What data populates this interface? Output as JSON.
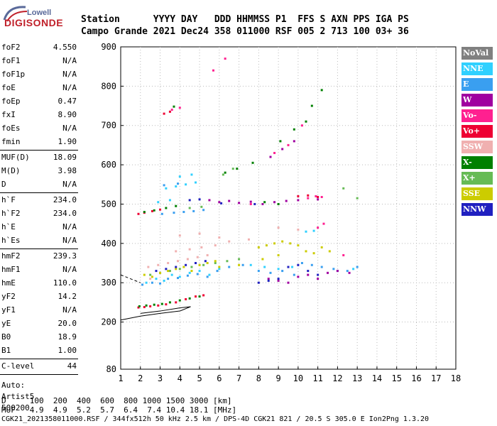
{
  "logo": {
    "top": "Lowell",
    "main": "DIGISONDE"
  },
  "header": {
    "line1": "Station      YYYY DAY   DDD HHMMSS P1  FFS S AXN PPS IGA PS",
    "line2": "Campo Grande 2021 Dec24 358 011000 RSF 005 2 713 100 03+ 36"
  },
  "params_a": [
    {
      "name": "foF2",
      "value": "4.550"
    },
    {
      "name": "foF1",
      "value": "N/A"
    },
    {
      "name": "foF1p",
      "value": "N/A"
    },
    {
      "name": "foE",
      "value": "N/A"
    },
    {
      "name": "foEp",
      "value": "0.47"
    },
    {
      "name": "fxI",
      "value": "8.90"
    },
    {
      "name": "foEs",
      "value": "N/A"
    },
    {
      "name": "fmin",
      "value": "1.90"
    }
  ],
  "params_b": [
    {
      "name": "MUF(D)",
      "value": "18.09"
    },
    {
      "name": "M(D)",
      "value": "3.98"
    },
    {
      "name": "D",
      "value": "N/A"
    }
  ],
  "params_c": [
    {
      "name": "h`F",
      "value": "234.0"
    },
    {
      "name": "h`F2",
      "value": "234.0"
    },
    {
      "name": "h`E",
      "value": "N/A"
    },
    {
      "name": "h`Es",
      "value": "N/A"
    }
  ],
  "params_d": [
    {
      "name": "hmF2",
      "value": "239.3"
    },
    {
      "name": "hmF1",
      "value": "N/A"
    },
    {
      "name": "hmE",
      "value": "110.0"
    },
    {
      "name": "yF2",
      "value": "14.2"
    },
    {
      "name": "yF1",
      "value": "N/A"
    },
    {
      "name": "yE",
      "value": "20.0"
    },
    {
      "name": "B0",
      "value": "18.9"
    },
    {
      "name": "B1",
      "value": "1.00"
    }
  ],
  "params_e": [
    {
      "name": "C-level",
      "value": "44"
    }
  ],
  "autoscale": {
    "line1": "Auto:",
    "line2": "Artist5",
    "line3": "500200"
  },
  "legend": [
    {
      "label": "NoVal",
      "color": "#808080"
    },
    {
      "label": "NNE",
      "color": "#30d0ff"
    },
    {
      "label": "E",
      "color": "#3a9ff0"
    },
    {
      "label": "W",
      "color": "#a000a0"
    },
    {
      "label": "Vo-",
      "color": "#ff2090"
    },
    {
      "label": "Vo+",
      "color": "#ee0033"
    },
    {
      "label": "SSW",
      "color": "#f0b0b0"
    },
    {
      "label": "X-",
      "color": "#008000"
    },
    {
      "label": "X+",
      "color": "#66bb55"
    },
    {
      "label": "SSE",
      "color": "#cccc00"
    },
    {
      "label": "NNW",
      "color": "#2020c0"
    }
  ],
  "footer": {
    "line1": "D     100  200  400  600  800 1000 1500 3000 [km]",
    "line2": "MUF   4.9  4.9  5.2  5.7  6.4  7.4 10.4 18.1 [MHz]",
    "line3": "CGK21_2021358011000.RSF / 344fx512h 50 kHz 2.5 km / DPS-4D CGK21 821 / 20.5 S 305.0 E Ion2Png 1.3.20"
  },
  "chart_data": {
    "type": "scatter",
    "xlim": [
      1,
      18
    ],
    "ylim": [
      80,
      900
    ],
    "x_ticks": [
      "1",
      "2",
      "3",
      "4",
      "5",
      "6",
      "7",
      "8",
      "9",
      "10",
      "11",
      "12",
      "13",
      "14",
      "15",
      "16",
      "17",
      "18"
    ],
    "y_ticks": [
      "80",
      "200",
      "300",
      "400",
      "500",
      "600",
      "700",
      "800",
      "900"
    ],
    "series": [
      {
        "name": "NNE",
        "color": "#30d0ff",
        "points": [
          [
            2.3,
            300
          ],
          [
            2.8,
            310
          ],
          [
            3.2,
            305
          ],
          [
            3.6,
            320
          ],
          [
            4.0,
            315
          ],
          [
            4.5,
            325
          ],
          [
            5.0,
            330
          ],
          [
            5.5,
            320
          ],
          [
            6.0,
            335
          ],
          [
            3.3,
            540
          ],
          [
            3.8,
            545
          ],
          [
            4.3,
            550
          ],
          [
            4.8,
            555
          ],
          [
            2.9,
            505
          ],
          [
            3.5,
            510
          ],
          [
            7.6,
            345
          ],
          [
            8.3,
            340
          ],
          [
            9.0,
            335
          ],
          [
            9.7,
            340
          ],
          [
            10.4,
            430
          ],
          [
            10.8,
            432
          ],
          [
            12.0,
            330
          ],
          [
            12.8,
            335
          ],
          [
            4.0,
            570
          ],
          [
            4.6,
            575
          ]
        ]
      },
      {
        "name": "E",
        "color": "#3a9ff0",
        "points": [
          [
            2.1,
            295
          ],
          [
            2.6,
            300
          ],
          [
            3.0,
            298
          ],
          [
            3.4,
            310
          ],
          [
            3.9,
            312
          ],
          [
            4.4,
            318
          ],
          [
            4.9,
            322
          ],
          [
            5.4,
            315
          ],
          [
            5.9,
            330
          ],
          [
            3.1,
            475
          ],
          [
            3.7,
            478
          ],
          [
            4.2,
            480
          ],
          [
            4.7,
            482
          ],
          [
            5.2,
            485
          ],
          [
            3.2,
            548
          ],
          [
            3.9,
            552
          ],
          [
            8.0,
            330
          ],
          [
            8.6,
            325
          ],
          [
            9.2,
            330
          ],
          [
            9.8,
            320
          ],
          [
            10.2,
            350
          ],
          [
            10.7,
            345
          ],
          [
            11.2,
            340
          ],
          [
            11.8,
            335
          ],
          [
            12.5,
            330
          ],
          [
            13.0,
            340
          ],
          [
            6.5,
            340
          ],
          [
            7.2,
            345
          ]
        ]
      },
      {
        "name": "W",
        "color": "#a000a0",
        "points": [
          [
            6.0,
            505
          ],
          [
            6.5,
            508
          ],
          [
            7.0,
            503
          ],
          [
            7.6,
            506
          ],
          [
            8.2,
            500
          ],
          [
            8.8,
            505
          ],
          [
            9.4,
            508
          ],
          [
            10.0,
            510
          ],
          [
            8.5,
            310
          ],
          [
            9.0,
            305
          ],
          [
            9.5,
            300
          ],
          [
            10.0,
            315
          ],
          [
            10.5,
            320
          ],
          [
            11.0,
            310
          ],
          [
            11.5,
            325
          ],
          [
            12.0,
            330
          ],
          [
            12.6,
            325
          ],
          [
            8.6,
            620
          ],
          [
            9.2,
            640
          ],
          [
            9.8,
            660
          ],
          [
            5.5,
            510
          ],
          [
            11.0,
            512
          ]
        ]
      },
      {
        "name": "Vo-",
        "color": "#ff2090",
        "points": [
          [
            5.7,
            840
          ],
          [
            6.3,
            870
          ],
          [
            3.6,
            740
          ],
          [
            4.0,
            745
          ],
          [
            8.8,
            630
          ],
          [
            9.5,
            650
          ],
          [
            10.2,
            700
          ],
          [
            10.9,
            520
          ],
          [
            11.2,
            518
          ],
          [
            10.5,
            515
          ],
          [
            11.0,
            440
          ],
          [
            11.3,
            450
          ],
          [
            7.6,
            500
          ],
          [
            12.3,
            370
          ]
        ]
      },
      {
        "name": "Vo+",
        "color": "#ee0033",
        "points": [
          [
            1.9,
            475
          ],
          [
            2.2,
            478
          ],
          [
            2.6,
            482
          ],
          [
            3.0,
            486
          ],
          [
            1.9,
            237
          ],
          [
            2.2,
            238
          ],
          [
            2.5,
            240
          ],
          [
            2.9,
            242
          ],
          [
            3.3,
            245
          ],
          [
            3.8,
            250
          ],
          [
            4.3,
            258
          ],
          [
            4.8,
            265
          ],
          [
            5.2,
            268
          ],
          [
            3.2,
            730
          ],
          [
            3.5,
            735
          ],
          [
            10.0,
            520
          ],
          [
            10.5,
            522
          ],
          [
            11.0,
            518
          ]
        ]
      },
      {
        "name": "SSW",
        "color": "#f0b0b0",
        "points": [
          [
            2.4,
            340
          ],
          [
            2.9,
            345
          ],
          [
            3.4,
            350
          ],
          [
            3.9,
            355
          ],
          [
            4.4,
            360
          ],
          [
            4.9,
            365
          ],
          [
            5.4,
            370
          ],
          [
            3.8,
            380
          ],
          [
            4.5,
            385
          ],
          [
            5.1,
            390
          ],
          [
            5.8,
            395
          ],
          [
            6.5,
            405
          ],
          [
            7.5,
            410
          ],
          [
            9.0,
            440
          ],
          [
            10.0,
            435
          ],
          [
            2.5,
            310
          ],
          [
            4.0,
            420
          ],
          [
            5.0,
            425
          ],
          [
            6.0,
            415
          ]
        ]
      },
      {
        "name": "X-",
        "color": "#008000",
        "points": [
          [
            1.95,
            240
          ],
          [
            2.3,
            242
          ],
          [
            2.7,
            244
          ],
          [
            3.1,
            246
          ],
          [
            3.5,
            250
          ],
          [
            4.0,
            255
          ],
          [
            4.5,
            260
          ],
          [
            5.0,
            265
          ],
          [
            2.2,
            480
          ],
          [
            2.7,
            484
          ],
          [
            3.3,
            490
          ],
          [
            3.8,
            495
          ],
          [
            9.1,
            660
          ],
          [
            9.8,
            690
          ],
          [
            10.4,
            710
          ],
          [
            10.7,
            750
          ],
          [
            11.2,
            790
          ],
          [
            6.3,
            580
          ],
          [
            6.9,
            590
          ],
          [
            7.7,
            605
          ],
          [
            3.7,
            748
          ],
          [
            8.3,
            505
          ],
          [
            9.0,
            500
          ]
        ]
      },
      {
        "name": "X+",
        "color": "#66bb55",
        "points": [
          [
            2.5,
            320
          ],
          [
            3.0,
            325
          ],
          [
            3.5,
            330
          ],
          [
            4.0,
            335
          ],
          [
            4.6,
            340
          ],
          [
            5.2,
            345
          ],
          [
            5.8,
            350
          ],
          [
            6.4,
            355
          ],
          [
            7.0,
            360
          ],
          [
            12.3,
            540
          ],
          [
            13.0,
            515
          ],
          [
            6.2,
            575
          ],
          [
            6.7,
            590
          ],
          [
            4.5,
            490
          ],
          [
            5.1,
            493
          ]
        ]
      },
      {
        "name": "SSE",
        "color": "#cccc00",
        "points": [
          [
            2.2,
            320
          ],
          [
            2.6,
            315
          ],
          [
            3.0,
            325
          ],
          [
            3.4,
            330
          ],
          [
            3.8,
            335
          ],
          [
            4.2,
            340
          ],
          [
            4.6,
            330
          ],
          [
            5.0,
            345
          ],
          [
            5.4,
            350
          ],
          [
            5.8,
            355
          ],
          [
            8.0,
            390
          ],
          [
            8.4,
            395
          ],
          [
            8.8,
            400
          ],
          [
            9.2,
            405
          ],
          [
            9.6,
            400
          ],
          [
            10.0,
            395
          ],
          [
            10.4,
            380
          ],
          [
            10.8,
            375
          ],
          [
            11.2,
            390
          ],
          [
            11.6,
            380
          ],
          [
            8.2,
            360
          ],
          [
            9.0,
            370
          ],
          [
            6.0,
            340
          ],
          [
            7.0,
            345
          ]
        ]
      },
      {
        "name": "NNW",
        "color": "#2020c0",
        "points": [
          [
            2.8,
            330
          ],
          [
            3.3,
            335
          ],
          [
            3.8,
            340
          ],
          [
            4.3,
            345
          ],
          [
            4.8,
            350
          ],
          [
            5.3,
            355
          ],
          [
            8.0,
            300
          ],
          [
            8.5,
            305
          ],
          [
            9.0,
            310
          ],
          [
            9.5,
            340
          ],
          [
            10.0,
            345
          ],
          [
            10.5,
            330
          ],
          [
            11.0,
            320
          ],
          [
            4.5,
            510
          ],
          [
            5.0,
            512
          ],
          [
            6.1,
            502
          ],
          [
            7.8,
            500
          ]
        ]
      }
    ],
    "profile": [
      [
        1.0,
        205
      ],
      [
        2.0,
        215
      ],
      [
        3.0,
        222
      ],
      [
        4.0,
        228
      ],
      [
        4.55,
        239
      ],
      [
        4.0,
        236
      ],
      [
        3.0,
        228
      ],
      [
        2.0,
        222
      ]
    ],
    "profile_upper": [
      [
        1.0,
        320
      ],
      [
        1.5,
        310
      ],
      [
        2.0,
        300
      ]
    ]
  }
}
